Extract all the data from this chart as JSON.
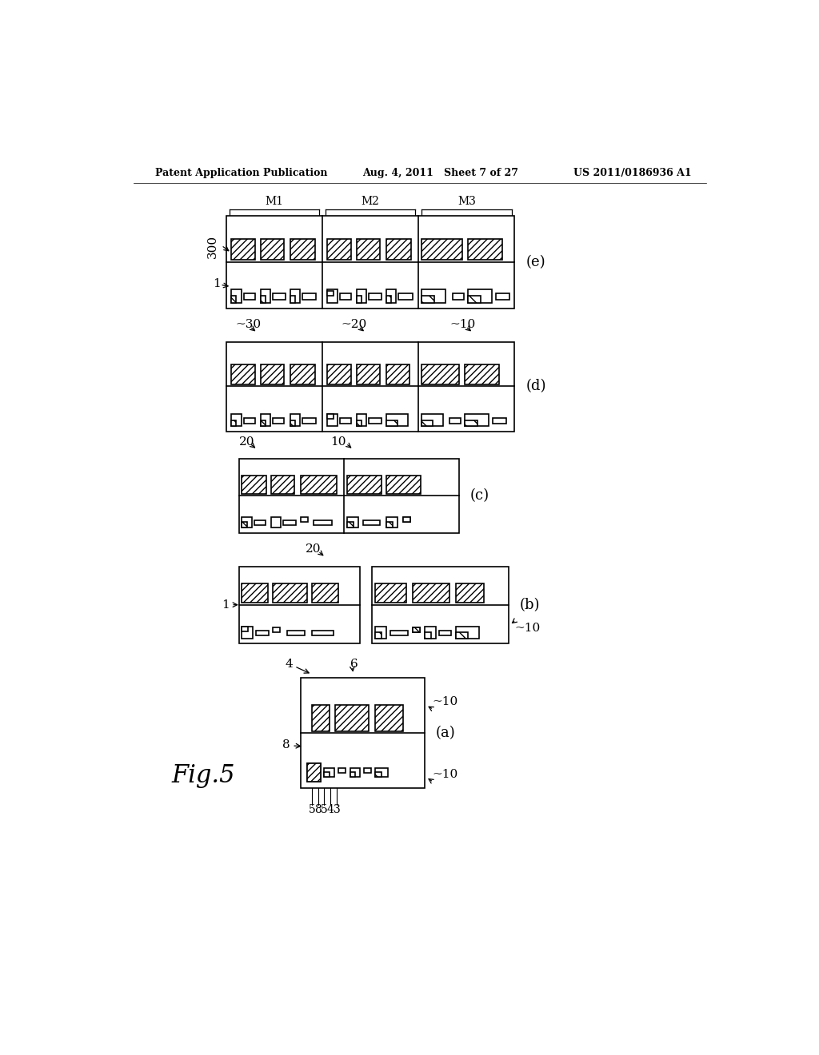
{
  "header_left": "Patent Application Publication",
  "header_center": "Aug. 4, 2011   Sheet 7 of 27",
  "header_right": "US 2011/0186936 A1",
  "figure_label": "Fig.5",
  "bg_color": "#ffffff",
  "line_color": "#000000",
  "hatch_color": "#000000",
  "panels": [
    "(a)",
    "(b)",
    "(c)",
    "(d)",
    "(e)"
  ]
}
